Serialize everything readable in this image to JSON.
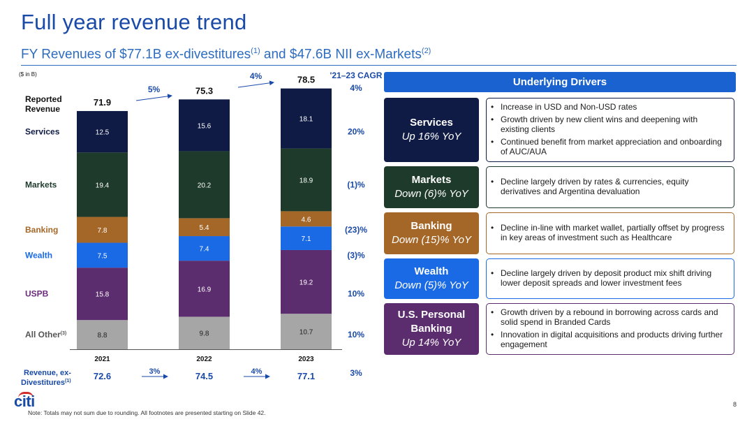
{
  "title": "Full year revenue trend",
  "subtitle": {
    "part1": "FY Revenues of $77.1B ex-divestitures",
    "sup1": "(1)",
    "part2": " and $47.6B NII ex-Markets",
    "sup2": "(2)"
  },
  "chart_data": {
    "type": "bar",
    "stacked": true,
    "unit_label": "($ in B)",
    "categories": [
      "2021",
      "2022",
      "2023"
    ],
    "series": [
      {
        "name": "All Other",
        "name_sup": "(3)",
        "values": [
          8.8,
          9.8,
          10.7
        ],
        "color": "#a6a6a6",
        "label_color": "#222222",
        "cagr": "10%",
        "label_color_legend": "#555555"
      },
      {
        "name": "USPB",
        "values": [
          15.8,
          16.9,
          19.2
        ],
        "color": "#5c2d6e",
        "label_color": "#ffffff",
        "cagr": "10%",
        "label_color_legend": "#6b2c7a"
      },
      {
        "name": "Wealth",
        "values": [
          7.5,
          7.4,
          7.1
        ],
        "color": "#1a6ae6",
        "label_color": "#ffffff",
        "cagr": "(3)%",
        "label_color_legend": "#1a6ae6"
      },
      {
        "name": "Banking",
        "values": [
          7.8,
          5.4,
          4.6
        ],
        "color": "#a56728",
        "label_color": "#ffffff",
        "cagr": "(23)%",
        "label_color_legend": "#a56728"
      },
      {
        "name": "Markets",
        "values": [
          19.4,
          20.2,
          18.9
        ],
        "color": "#1d3a2b",
        "label_color": "#ffffff",
        "cagr": "(1)%",
        "label_color_legend": "#1d3a2b"
      },
      {
        "name": "Services",
        "values": [
          12.5,
          15.6,
          18.1
        ],
        "color": "#0f1b44",
        "label_color": "#ffffff",
        "cagr": "20%",
        "label_color_legend": "#0f1b44"
      }
    ],
    "totals": {
      "label": [
        "Reported",
        "Revenue"
      ],
      "values": [
        "71.9",
        "75.3",
        "78.5"
      ],
      "cagr": "4%"
    },
    "total_growth": [
      "5%",
      "4%"
    ],
    "cagr_header": "'21–23 CAGR",
    "ex_divestitures": {
      "label": [
        "Revenue, ex-",
        "Divestitures"
      ],
      "label_sup": "(1)",
      "values": [
        "72.6",
        "74.5",
        "77.1"
      ],
      "growth": [
        "3%",
        "4%"
      ],
      "cagr": "3%"
    },
    "ylim": [
      0,
      80
    ]
  },
  "drivers": {
    "header": "Underlying Drivers",
    "items": [
      {
        "name": "Services",
        "sub": "Up 16% YoY",
        "color": "#0f1b44",
        "bullets": [
          "Increase in USD and Non-USD rates",
          "Growth driven by new client wins and deepening with existing clients",
          "Continued benefit from market appreciation and onboarding of AUC/AUA"
        ]
      },
      {
        "name": "Markets",
        "sub": "Down (6)% YoY",
        "color": "#1d3a2b",
        "bullets": [
          "Decline largely driven by rates & currencies, equity derivatives and Argentina devaluation"
        ]
      },
      {
        "name": "Banking",
        "sub": "Down (15)% YoY",
        "color": "#a56728",
        "bullets": [
          "Decline in-line with market wallet, partially offset by progress in key areas of investment such as Healthcare"
        ]
      },
      {
        "name": "Wealth",
        "sub": "Down (5)% YoY",
        "color": "#1a6ae6",
        "bullets": [
          "Decline largely driven by deposit product mix shift driving lower deposit spreads and lower investment fees"
        ]
      },
      {
        "name": "U.S. Personal Banking",
        "sub": "Up 14% YoY",
        "color": "#5c2d6e",
        "bullets": [
          "Growth driven by a rebound in borrowing across cards and solid spend in Branded Cards",
          "Innovation in digital acquisitions and products driving further engagement"
        ]
      }
    ]
  },
  "footer": {
    "logo": "citi",
    "note": "Note: Totals may not sum due to rounding. All footnotes are presented starting on Slide 42.",
    "page": "8"
  }
}
